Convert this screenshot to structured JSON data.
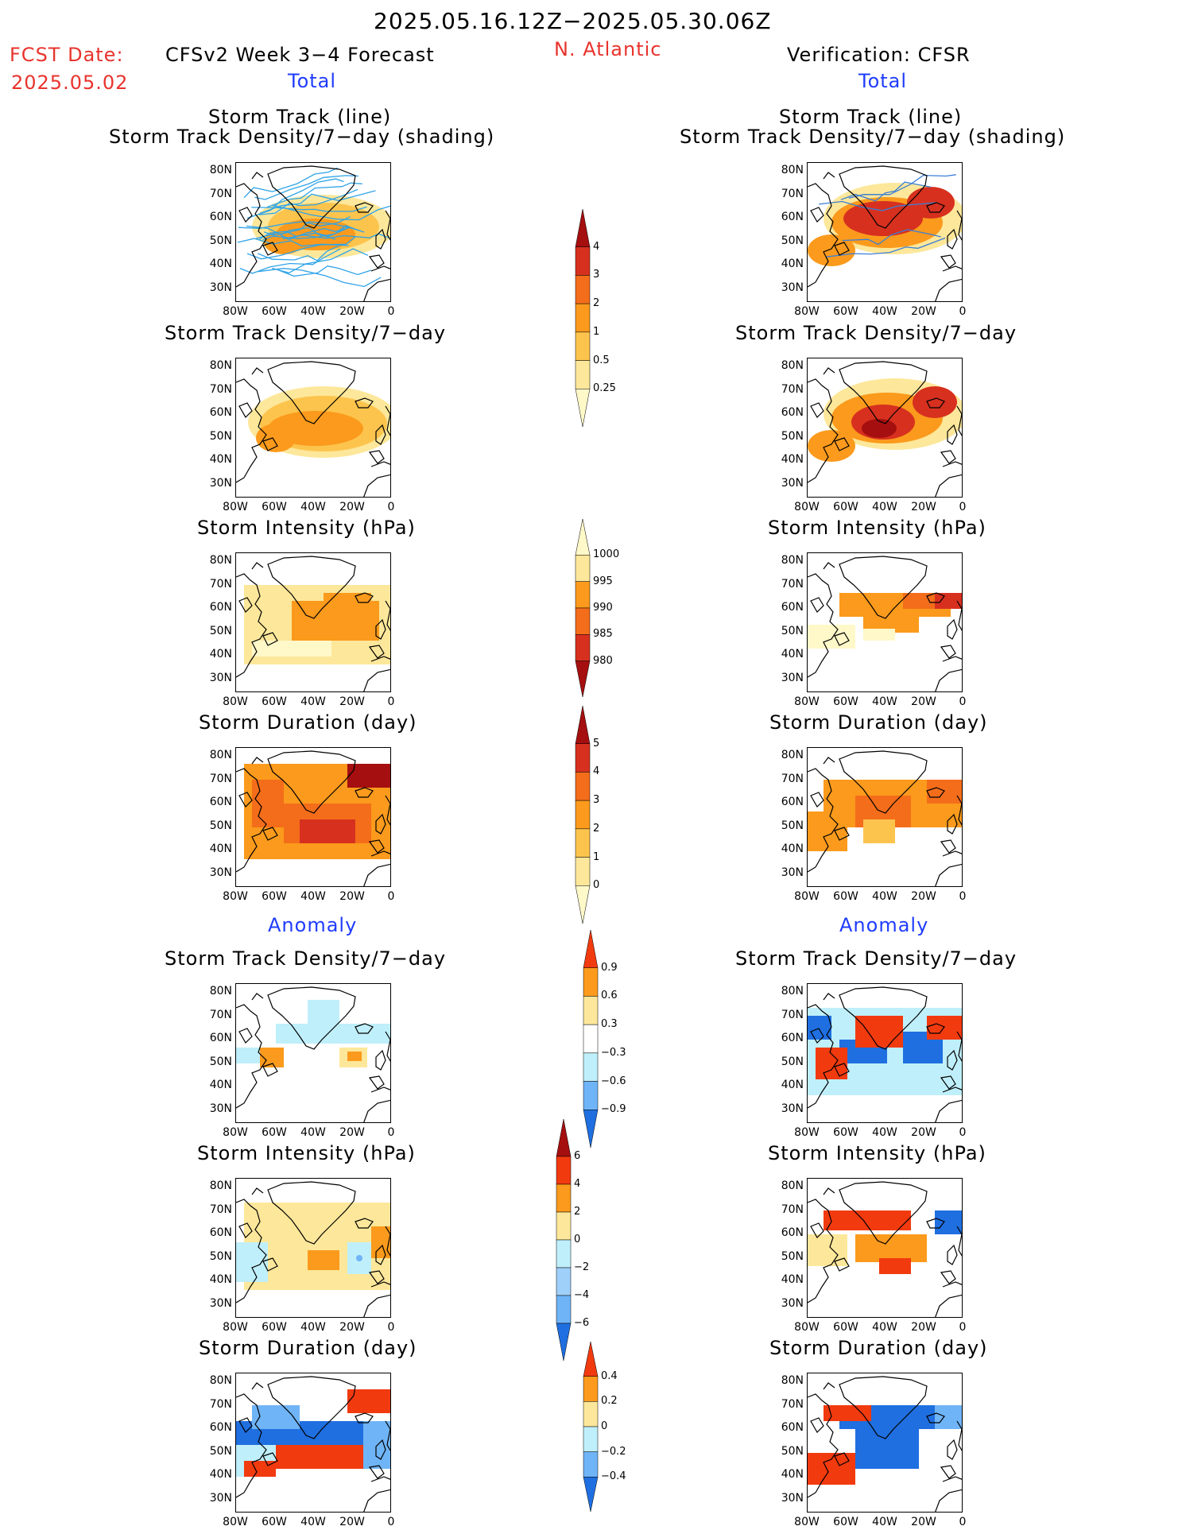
{
  "header": {
    "period": "2025.05.16.12Z−2025.05.30.06Z",
    "region": "N. Atlantic",
    "fcst_label": "FCST Date:",
    "fcst_date": "2025.05.02",
    "left_title": "CFSv2 Week 3−4 Forecast",
    "right_title": "Verification: CFSR",
    "total_label": "Total",
    "anomaly_label": "Anomaly"
  },
  "panel_titles": {
    "track_line": "Storm Track (line)",
    "track_shading": "Storm Track Density/7−day (shading)",
    "density": "Storm Track Density/7−day",
    "intensity": "Storm Intensity (hPa)",
    "duration": "Storm Duration (day)"
  },
  "axes": {
    "lat_ticks": [
      "80N",
      "70N",
      "60N",
      "50N",
      "40N",
      "30N"
    ],
    "lon_ticks": [
      "80W",
      "60W",
      "40W",
      "20W",
      "0"
    ]
  },
  "colorbars": {
    "density": {
      "labels": [
        "4",
        "3",
        "2",
        "1",
        "0.5",
        "0.25"
      ],
      "colors": [
        "#a50f0f",
        "#d7301f",
        "#f46d1a",
        "#fb9a1c",
        "#fdc44d",
        "#fde79a",
        "#fff8c8"
      ]
    },
    "intensity": {
      "labels": [
        "1000",
        "995",
        "990",
        "985",
        "980"
      ],
      "colors": [
        "#fff8c8",
        "#fde79a",
        "#fb9a1c",
        "#f46d1a",
        "#d7301f",
        "#a50f0f"
      ]
    },
    "duration": {
      "labels": [
        "5",
        "4",
        "3",
        "2",
        "1",
        "0"
      ],
      "colors": [
        "#a50f0f",
        "#d7301f",
        "#f46d1a",
        "#fb9a1c",
        "#fdc44d",
        "#fde79a",
        "#fff8c8"
      ]
    },
    "anom_density": {
      "labels": [
        "0.9",
        "0.6",
        "0.3",
        "−0.3",
        "−0.6",
        "−0.9"
      ],
      "colors": [
        "#f23a0f",
        "#fb9a1c",
        "#fde79a",
        "#ffffff",
        "#bfeffa",
        "#6fb4f7",
        "#1f6fe0"
      ]
    },
    "anom_intensity": {
      "labels": [
        "6",
        "4",
        "2",
        "0",
        "−2",
        "−4",
        "−6"
      ],
      "colors": [
        "#a50f0f",
        "#f23a0f",
        "#fb9a1c",
        "#fde79a",
        "#bfeffa",
        "#9fd0fa",
        "#6fb4f7",
        "#1f6fe0"
      ]
    },
    "anom_duration": {
      "labels": [
        "0.4",
        "0.2",
        "0",
        "−0.2",
        "−0.4"
      ],
      "colors": [
        "#f23a0f",
        "#fb9a1c",
        "#fde79a",
        "#bfeffa",
        "#6fb4f7",
        "#1f6fe0"
      ]
    }
  }
}
